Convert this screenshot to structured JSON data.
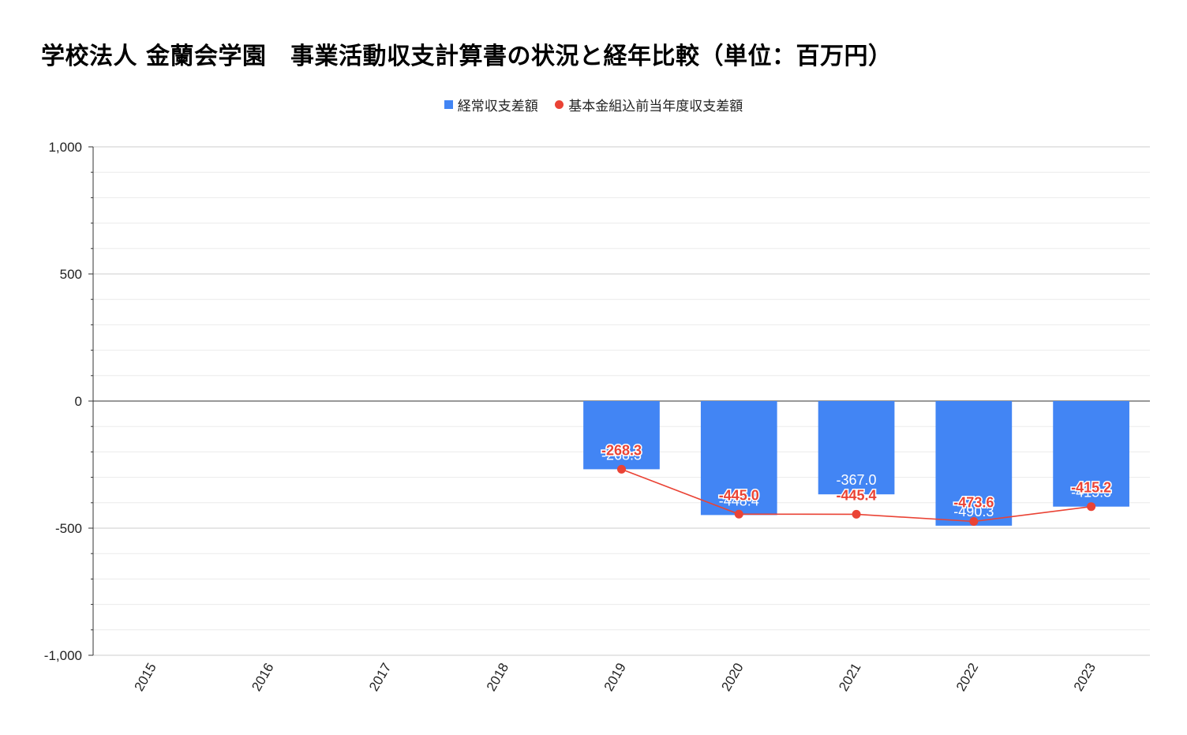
{
  "chart_data": {
    "type": "bar",
    "title": "学校法人 金蘭会学園　事業活動収支計算書の状況と経年比較（単位：百万円）",
    "categories": [
      "2015",
      "2016",
      "2017",
      "2018",
      "2019",
      "2020",
      "2021",
      "2022",
      "2023"
    ],
    "series": [
      {
        "name": "経常収支差額",
        "type": "bar",
        "color": "#4285f4",
        "values": [
          null,
          null,
          null,
          null,
          -268.3,
          -448.4,
          -367.0,
          -490.3,
          -415.3
        ],
        "labels": [
          "",
          "",
          "",
          "",
          "-268.3",
          "-448.4",
          "-367.0",
          "-490.3",
          "-415.3"
        ]
      },
      {
        "name": "基本金組込前当年度収支差額",
        "type": "line",
        "color": "#ea4335",
        "values": [
          null,
          null,
          null,
          null,
          -268.3,
          -445.0,
          -445.4,
          -473.6,
          -415.2
        ],
        "labels": [
          "",
          "",
          "",
          "",
          "-268.3",
          "-445.0",
          "-445.4",
          "-473.6",
          "-415.2"
        ]
      }
    ],
    "ylim": [
      -1000,
      1000
    ],
    "yticks": [
      1000,
      500,
      0,
      -500,
      -1000
    ],
    "ytick_labels": [
      "1,000",
      "500",
      "0",
      "-500",
      "-1,000"
    ],
    "minor_step": 100,
    "grid": true,
    "legend_position": "top-center",
    "xlabel": "",
    "ylabel": ""
  }
}
